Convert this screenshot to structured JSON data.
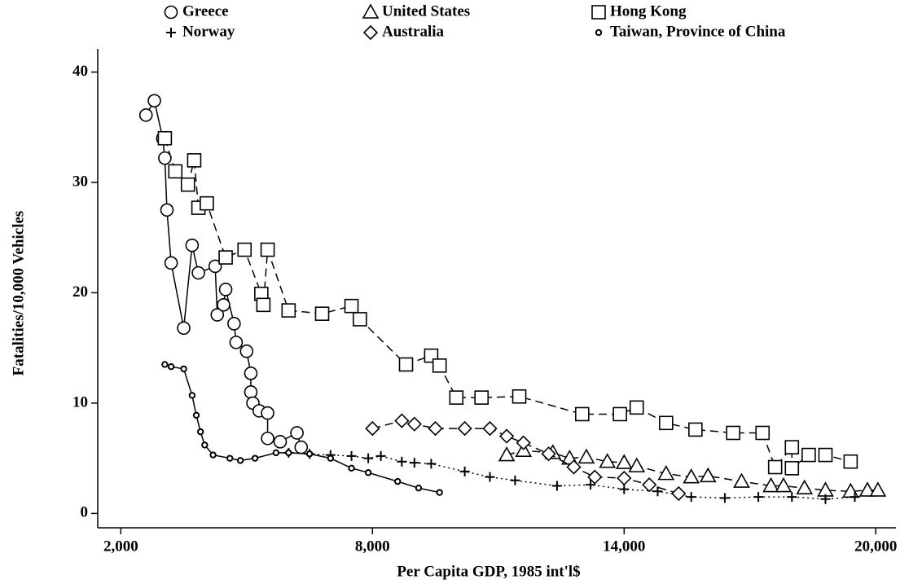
{
  "chart_data": {
    "type": "scatter",
    "x_label": "Per Capita GDP, 1985 int'l$",
    "y_label": "Fatalities/10,000 Vehicles",
    "xlim": [
      1450,
      20480
    ],
    "ylim": [
      -1.3,
      42.1
    ],
    "xticks": [
      {
        "value": 2000,
        "label": "2,000"
      },
      {
        "value": 8000,
        "label": "8,000"
      },
      {
        "value": 14000,
        "label": "14,000"
      },
      {
        "value": 20000,
        "label": "20,000"
      }
    ],
    "yticks": [
      0,
      10,
      20,
      30,
      40
    ],
    "color": "#000000",
    "series": [
      {
        "name": "Greece",
        "marker": "circle",
        "line": "solid",
        "x": [
          2600,
          2800,
          3000,
          3050,
          3100,
          3200,
          3500,
          3700,
          3850,
          4250,
          4300,
          4450,
          4500,
          4700,
          4750,
          5000,
          5100,
          5100,
          5150,
          5300,
          5500,
          5500,
          5800,
          6200,
          6300
        ],
        "y": [
          36.1,
          37.4,
          34,
          32.2,
          27.5,
          22.7,
          16.8,
          24.3,
          21.8,
          22.4,
          18,
          18.9,
          20.3,
          17.2,
          15.5,
          14.7,
          12.7,
          11,
          10,
          9.3,
          9.1,
          6.8,
          6.5,
          7.3,
          6
        ]
      },
      {
        "name": "United States",
        "marker": "triangle",
        "line": "dashed",
        "x": [
          11200,
          11600,
          12300,
          12700,
          13100,
          13600,
          14000,
          14300,
          15000,
          15600,
          16000,
          16800,
          17500,
          17800,
          18300,
          18800,
          19400,
          19800,
          20050
        ],
        "y": [
          5.3,
          5.7,
          5.5,
          5.0,
          5.1,
          4.7,
          4.6,
          4.3,
          3.6,
          3.3,
          3.4,
          2.9,
          2.5,
          2.5,
          2.3,
          2.1,
          2.0,
          2.1,
          2.1
        ]
      },
      {
        "name": "Hong Kong",
        "marker": "square",
        "line": "dashed",
        "x": [
          3050,
          3300,
          3600,
          3750,
          3850,
          4050,
          4500,
          4950,
          5350,
          5400,
          5500,
          6000,
          6800,
          7500,
          7700,
          8800,
          9400,
          9600,
          10000,
          10600,
          11500,
          13000,
          13900,
          14300,
          15000,
          15700,
          16600,
          17300,
          17600,
          18000,
          18000,
          18400,
          18800,
          19400
        ],
        "y": [
          34,
          31,
          29.8,
          32,
          27.7,
          28.1,
          23.2,
          23.9,
          19.9,
          18.9,
          23.9,
          18.4,
          18.1,
          18.8,
          17.6,
          13.5,
          14.3,
          13.4,
          10.5,
          10.5,
          10.6,
          9.0,
          9.0,
          9.6,
          8.2,
          7.6,
          7.3,
          7.3,
          4.2,
          6.0,
          4.1,
          5.3,
          5.3,
          4.7
        ]
      },
      {
        "name": "Norway",
        "marker": "plus",
        "line": "dotted",
        "x": [
          6000,
          6500,
          7000,
          7500,
          7900,
          8200,
          8700,
          9000,
          9400,
          10200,
          10800,
          11400,
          12400,
          13200,
          14000,
          14800,
          15600,
          16400,
          17200,
          18000,
          18800,
          19500
        ],
        "y": [
          5.5,
          5.4,
          5.3,
          5.2,
          5.0,
          5.2,
          4.7,
          4.6,
          4.5,
          3.8,
          3.3,
          3.0,
          2.5,
          2.6,
          2.2,
          2.0,
          1.5,
          1.4,
          1.5,
          1.5,
          1.3,
          1.5
        ]
      },
      {
        "name": "Australia",
        "marker": "diamond",
        "line": "dashed",
        "x": [
          8000,
          8700,
          9000,
          9500,
          10200,
          10800,
          11200,
          11600,
          12200,
          12800,
          13300,
          14000,
          14600,
          15300
        ],
        "y": [
          7.7,
          8.4,
          8.1,
          7.7,
          7.7,
          7.7,
          7.0,
          6.4,
          5.4,
          4.2,
          3.3,
          3.2,
          2.6,
          1.8
        ]
      },
      {
        "name": "Taiwan, Province of China",
        "marker": "dot",
        "line": "solid",
        "x": [
          3050,
          3200,
          3500,
          3700,
          3800,
          3900,
          4000,
          4200,
          4600,
          4850,
          5200,
          5700,
          6000,
          6500,
          7000,
          7500,
          7900,
          8600,
          9100,
          9600
        ],
        "y": [
          13.5,
          13.3,
          13.1,
          10.7,
          8.9,
          7.4,
          6.2,
          5.3,
          5.0,
          4.8,
          5.0,
          5.5,
          5.5,
          5.4,
          5.0,
          4.1,
          3.7,
          2.9,
          2.3,
          1.9
        ]
      }
    ]
  }
}
